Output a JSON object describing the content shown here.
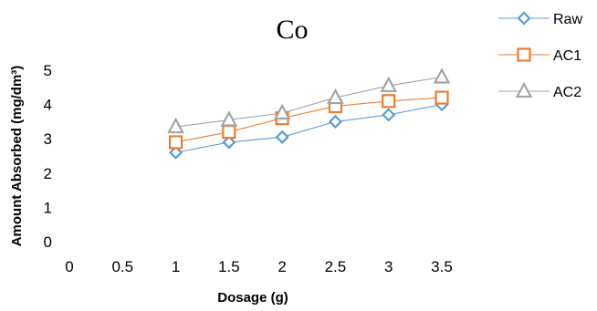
{
  "chart_data": {
    "type": "line",
    "title": "Co",
    "xlabel": "Dosage (g)",
    "ylabel": "Amount Absorbed (mg/dm³)",
    "x_ticks": [
      "0",
      "0.5",
      "1",
      "1.5",
      "2",
      "2.5",
      "3",
      "3.5"
    ],
    "y_ticks": [
      "0",
      "1",
      "2",
      "3",
      "4",
      "5"
    ],
    "xlim": [
      0,
      3.5
    ],
    "ylim": [
      0,
      5
    ],
    "grid": false,
    "legend_position": "right",
    "x": [
      1,
      1.5,
      2,
      2.5,
      3,
      3.5
    ],
    "series": [
      {
        "name": "Raw",
        "marker": "diamond",
        "color": "#5B9BD5",
        "values": [
          2.6,
          2.9,
          3.05,
          3.5,
          3.7,
          4.0
        ]
      },
      {
        "name": "AC1",
        "marker": "square",
        "color": "#ED7D31",
        "values": [
          2.9,
          3.2,
          3.6,
          3.95,
          4.1,
          4.2
        ]
      },
      {
        "name": "AC2",
        "marker": "triangle",
        "color": "#A5A5A5",
        "values": [
          3.35,
          3.55,
          3.75,
          4.2,
          4.55,
          4.8
        ]
      }
    ]
  }
}
